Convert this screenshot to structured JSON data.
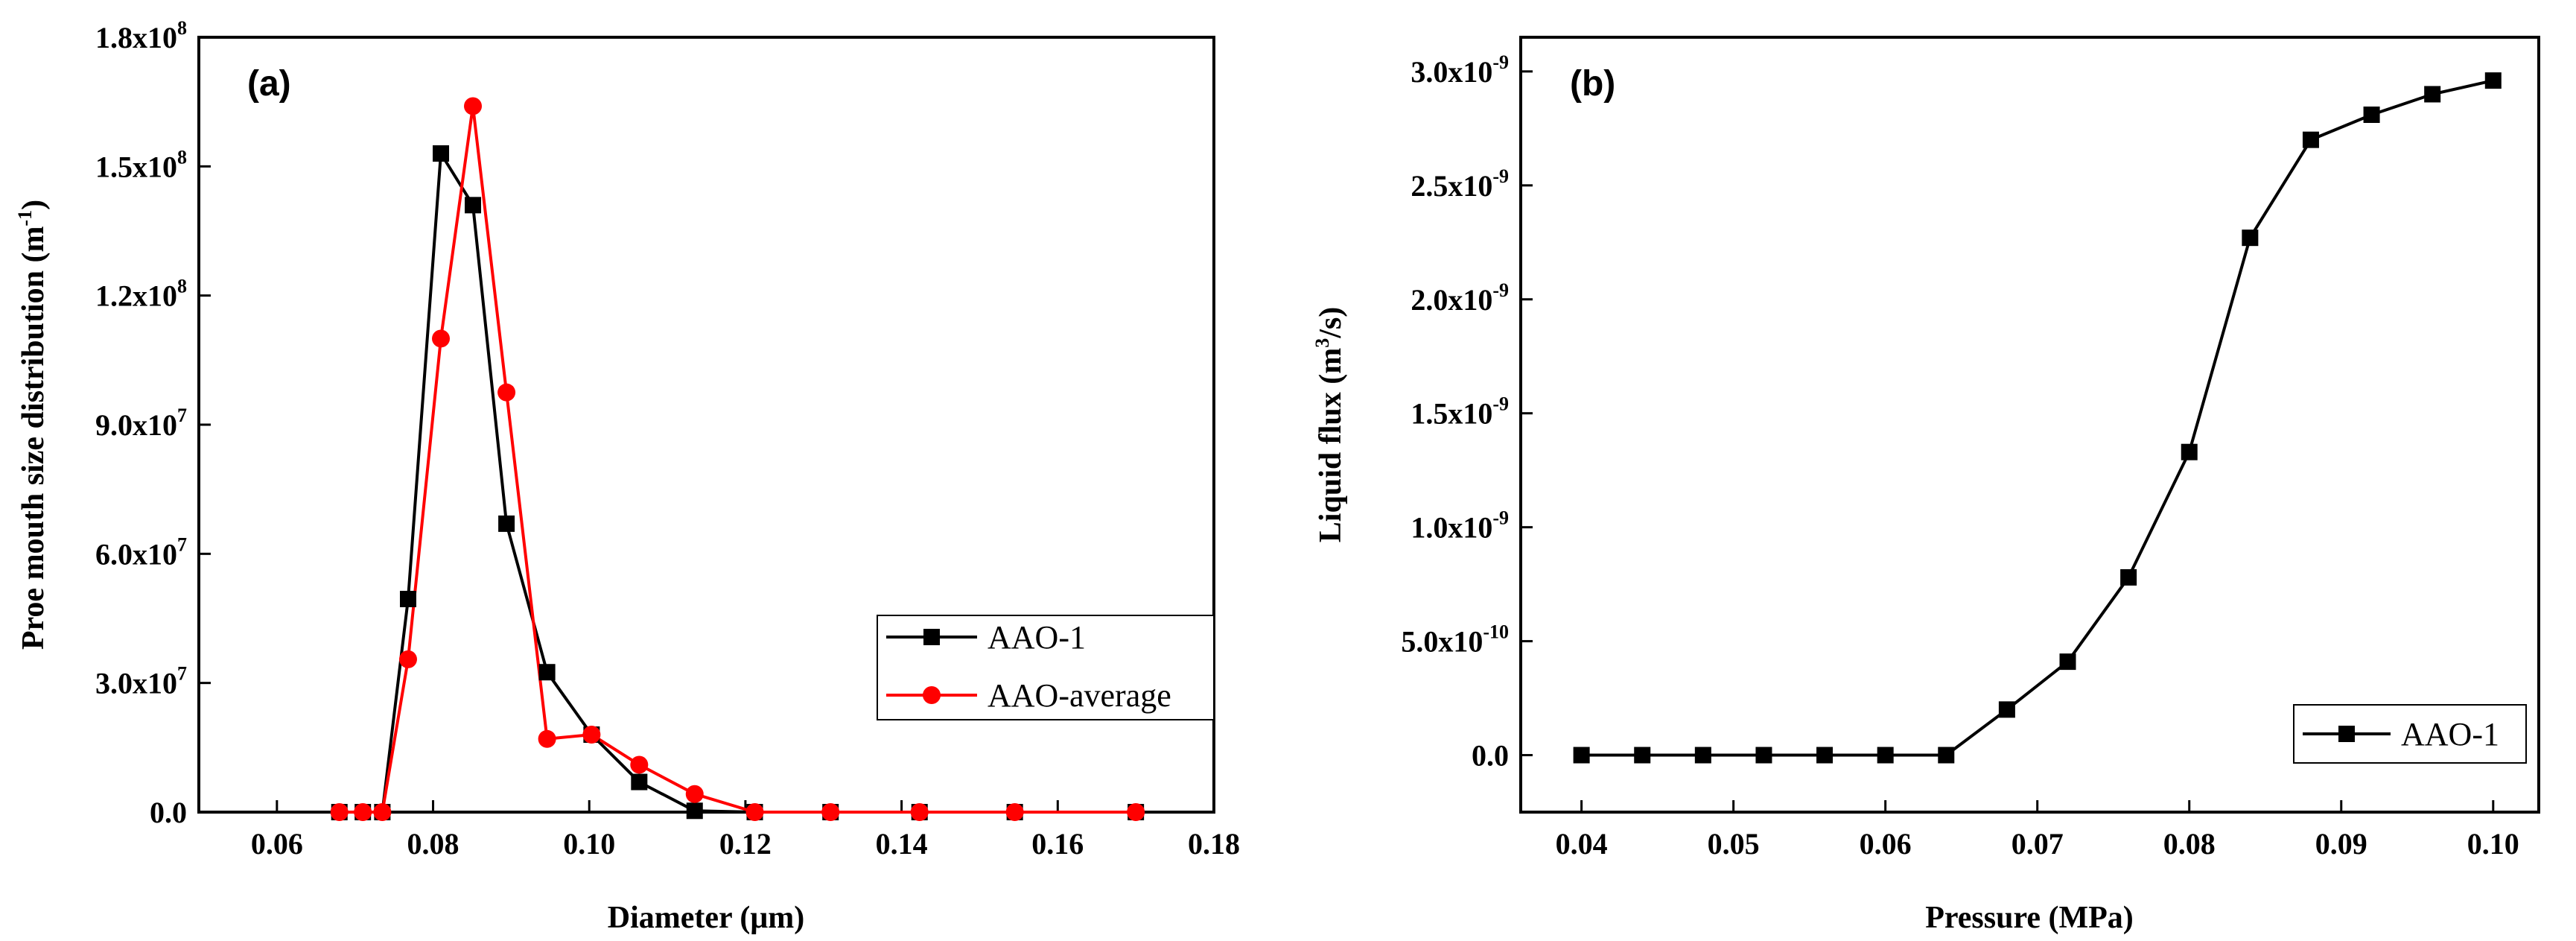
{
  "chart_data": [
    {
      "panel": "(a)",
      "type": "line",
      "xlabel": "Diameter (μm)",
      "ylabel": "Proe mouth size distribution (m-1)",
      "xlim": [
        0.05,
        0.18
      ],
      "ylim": [
        0,
        180000000
      ],
      "x_ticks": [
        0.06,
        0.08,
        0.1,
        0.12,
        0.14,
        0.16,
        0.18
      ],
      "x_tick_labels": [
        "0.06",
        "0.08",
        "0.10",
        "0.12",
        "0.14",
        "0.16",
        "0.18"
      ],
      "y_ticks": [
        0,
        30000000,
        60000000,
        90000000,
        120000000,
        150000000,
        180000000
      ],
      "y_tick_labels": [
        {
          "mantissa": "0.0",
          "exp": ""
        },
        {
          "mantissa": "3.0x10",
          "exp": "7"
        },
        {
          "mantissa": "6.0x10",
          "exp": "7"
        },
        {
          "mantissa": "9.0x10",
          "exp": "7"
        },
        {
          "mantissa": "1.2x10",
          "exp": "8"
        },
        {
          "mantissa": "1.5x10",
          "exp": "8"
        },
        {
          "mantissa": "1.8x10",
          "exp": "8"
        }
      ],
      "legend_position": "middle-right",
      "series": [
        {
          "name": "AAO-1",
          "color": "#000000",
          "marker": "square",
          "x": [
            0.068,
            0.071,
            0.0735,
            0.0768,
            0.081,
            0.0851,
            0.0894,
            0.0946,
            0.1003,
            0.1064,
            0.1135,
            0.1212,
            0.1309,
            0.1423,
            0.1545,
            0.17
          ],
          "y": [
            0,
            0,
            0,
            49500000,
            153000000,
            141000000,
            67000000,
            32500000,
            18000000,
            7000000,
            300000,
            0,
            0,
            0,
            0,
            0
          ]
        },
        {
          "name": "AAO-average",
          "color": "#ff0000",
          "marker": "circle",
          "x": [
            0.068,
            0.071,
            0.0735,
            0.0768,
            0.081,
            0.0851,
            0.0894,
            0.0946,
            0.1003,
            0.1064,
            0.1135,
            0.1212,
            0.1309,
            0.1423,
            0.1545,
            0.17
          ],
          "y": [
            0,
            0,
            0,
            35500000,
            110000000,
            164000000,
            97500000,
            17000000,
            18000000,
            11000000,
            4200000,
            0,
            0,
            0,
            0,
            0
          ]
        }
      ]
    },
    {
      "panel": "(b)",
      "type": "line",
      "xlabel": "Pressure (MPa)",
      "ylabel": "Liquid flux (m3/s)",
      "xlim": [
        0.036,
        0.103
      ],
      "ylim": [
        -2.5e-10,
        3.15e-09
      ],
      "x_ticks": [
        0.04,
        0.05,
        0.06,
        0.07,
        0.08,
        0.09,
        0.1
      ],
      "x_tick_labels": [
        "0.04",
        "0.05",
        "0.06",
        "0.07",
        "0.08",
        "0.09",
        "0.10"
      ],
      "y_ticks": [
        0,
        5e-10,
        1e-09,
        1.5e-09,
        2e-09,
        2.5e-09,
        3e-09
      ],
      "y_tick_labels": [
        {
          "mantissa": "0.0",
          "exp": ""
        },
        {
          "mantissa": "5.0x10",
          "exp": "-10"
        },
        {
          "mantissa": "1.0x10",
          "exp": "-9"
        },
        {
          "mantissa": "1.5x10",
          "exp": "-9"
        },
        {
          "mantissa": "2.0x10",
          "exp": "-9"
        },
        {
          "mantissa": "2.5x10",
          "exp": "-9"
        },
        {
          "mantissa": "3.0x10",
          "exp": "-9"
        }
      ],
      "legend_position": "bottom-right",
      "series": [
        {
          "name": "AAO-1",
          "color": "#000000",
          "marker": "square",
          "x": [
            0.04,
            0.044,
            0.048,
            0.052,
            0.056,
            0.06,
            0.064,
            0.068,
            0.072,
            0.076,
            0.08,
            0.084,
            0.088,
            0.092,
            0.096,
            0.1
          ],
          "y": [
            0,
            0,
            0,
            0,
            0,
            0,
            0,
            2e-10,
            4.1e-10,
            7.8e-10,
            1.33e-09,
            2.27e-09,
            2.7e-09,
            2.81e-09,
            2.9e-09,
            2.96e-09
          ]
        }
      ]
    }
  ],
  "labels": {
    "panel_a": "(a)",
    "panel_b": "(b)",
    "a_xlabel": "Diameter (μm)",
    "a_ylabel_main": "Proe mouth size distribution (m",
    "a_ylabel_sup": "-1",
    "a_ylabel_end": ")",
    "b_xlabel": "Pressure (MPa)",
    "b_ylabel_main": "Liquid flux (m",
    "b_ylabel_sup": "3",
    "b_ylabel_end": "/s)"
  }
}
